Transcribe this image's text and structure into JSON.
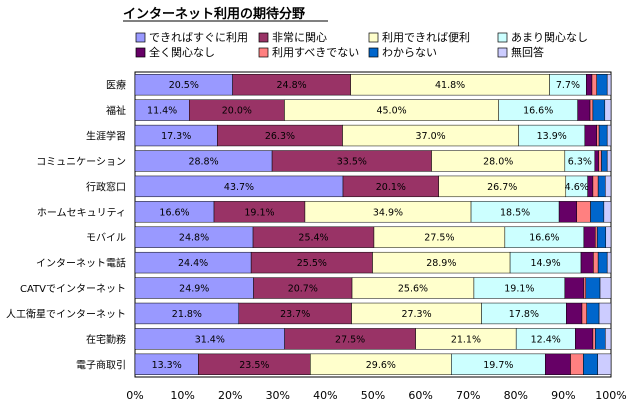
{
  "chart_data": {
    "type": "bar",
    "orientation": "horizontal",
    "stacked": "percent",
    "title": "インターネット利用の期待分野",
    "categories": [
      "医療",
      "福祉",
      "生涯学習",
      "コミュニケーション",
      "行政窓口",
      "ホームセキュリティ",
      "モバイル",
      "インターネット電話",
      "CATVでインターネット",
      "人工衛星でインターネット",
      "在宅勤務",
      "電子商取引"
    ],
    "series": [
      {
        "name": "できればすぐに利用",
        "color": "#9999ff",
        "values": [
          20.5,
          11.4,
          17.3,
          28.8,
          43.7,
          16.6,
          24.8,
          24.4,
          24.9,
          21.8,
          31.4,
          13.3
        ]
      },
      {
        "name": "非常に関心",
        "color": "#993366",
        "values": [
          24.8,
          20.0,
          26.3,
          33.5,
          20.1,
          19.1,
          25.4,
          25.5,
          20.7,
          23.7,
          27.5,
          23.5
        ]
      },
      {
        "name": "利用できれば便利",
        "color": "#ffffcc",
        "values": [
          41.8,
          45.0,
          37.0,
          28.0,
          26.7,
          34.9,
          27.5,
          28.9,
          25.6,
          27.3,
          21.1,
          29.6
        ]
      },
      {
        "name": "あまり関心なし",
        "color": "#ccffff",
        "values": [
          7.7,
          16.6,
          13.9,
          6.3,
          4.6,
          18.5,
          16.6,
          14.9,
          19.1,
          17.8,
          12.4,
          19.7
        ]
      },
      {
        "name": "全く関心なし",
        "color": "#660066",
        "values": [
          1.2,
          2.6,
          2.5,
          0.8,
          1.1,
          3.7,
          2.4,
          2.6,
          4.0,
          3.3,
          3.7,
          5.3
        ]
      },
      {
        "name": "利用すべきでない",
        "color": "#ff8080",
        "values": [
          1.0,
          0.6,
          0.5,
          0.6,
          1.1,
          2.9,
          0.4,
          1.0,
          0.4,
          1.0,
          0.5,
          2.7
        ]
      },
      {
        "name": "わからない",
        "color": "#0066cc",
        "values": [
          2.2,
          2.5,
          1.7,
          1.2,
          1.5,
          2.8,
          1.8,
          1.9,
          3.0,
          2.6,
          2.1,
          3.0
        ]
      },
      {
        "name": "無回答",
        "color": "#ccccff",
        "values": [
          0.8,
          1.3,
          0.8,
          0.8,
          1.2,
          1.5,
          1.1,
          0.8,
          2.3,
          2.5,
          1.2,
          2.8
        ]
      }
    ],
    "labeled_series": [
      "できればすぐに利用",
      "非常に関心",
      "利用できれば便利",
      "あまり関心なし"
    ],
    "xlim": [
      0,
      100
    ],
    "xticks": [
      "0%",
      "10%",
      "20%",
      "30%",
      "40%",
      "50%",
      "60%",
      "70%",
      "80%",
      "90%",
      "100%"
    ],
    "legend_position": "top",
    "grid": false
  }
}
